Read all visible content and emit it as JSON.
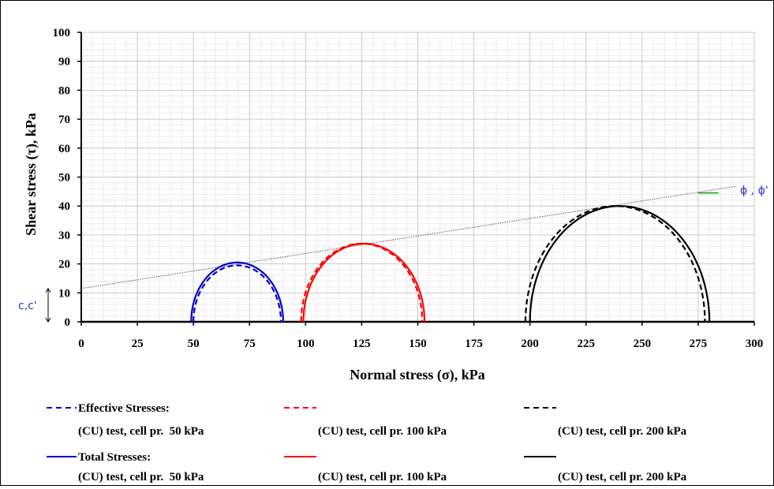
{
  "chart_data": {
    "type": "line",
    "title": "",
    "xlabel": "Normal stress (σ), kPa",
    "ylabel": "Shear stress (τ), kPa",
    "xlim": [
      0,
      300
    ],
    "ylim": [
      0,
      100
    ],
    "x_ticks": [
      0,
      25,
      50,
      75,
      100,
      125,
      150,
      175,
      200,
      225,
      250,
      275,
      300
    ],
    "y_ticks": [
      0,
      10,
      20,
      30,
      40,
      50,
      60,
      70,
      80,
      90,
      100
    ],
    "grid": true,
    "series": [
      {
        "name": "Effective Stresses: (CU) test, cell pr.  50 kPa",
        "style": "dashed",
        "color": "#0000cc",
        "sigma_min": 50,
        "sigma_max": 89
      },
      {
        "name": "(CU) test, cell pr. 100 kPa",
        "style": "dashed",
        "color": "#ff0000",
        "sigma_min": 98,
        "sigma_max": 152
      },
      {
        "name": "(CU) test, cell pr. 200 kPa",
        "style": "dashed",
        "color": "#000000",
        "sigma_min": 198,
        "sigma_max": 278
      },
      {
        "name": "Total Stresses: (CU) test, cell pr.  50 kPa",
        "style": "solid",
        "color": "#0000cc",
        "sigma_min": 49,
        "sigma_max": 90
      },
      {
        "name": "(CU) test, cell pr. 100 kPa",
        "style": "solid",
        "color": "#ff0000",
        "sigma_min": 99,
        "sigma_max": 153
      },
      {
        "name": "(CU) test, cell pr. 200 kPa",
        "style": "solid",
        "color": "#000000",
        "sigma_min": 200,
        "sigma_max": 280
      }
    ],
    "envelope": {
      "c": 11.5,
      "slope": 0.121,
      "x_end": 292
    },
    "annotations": {
      "phi_label": "ϕ , ϕ'",
      "cohesion_label": "c,c'"
    },
    "legend": {
      "position": "bottom",
      "effective_heading": "Effective Stresses:",
      "total_heading": "Total Stresses:",
      "entries_row1": [
        "(CU) test, cell pr.  50 kPa",
        "(CU) test, cell pr. 100 kPa",
        "(CU) test, cell pr. 200 kPa"
      ],
      "entries_row2": [
        "(CU) test, cell pr.  50 kPa",
        "(CU) test, cell pr. 100 kPa",
        "(CU) test, cell pr. 200 kPa"
      ]
    }
  }
}
